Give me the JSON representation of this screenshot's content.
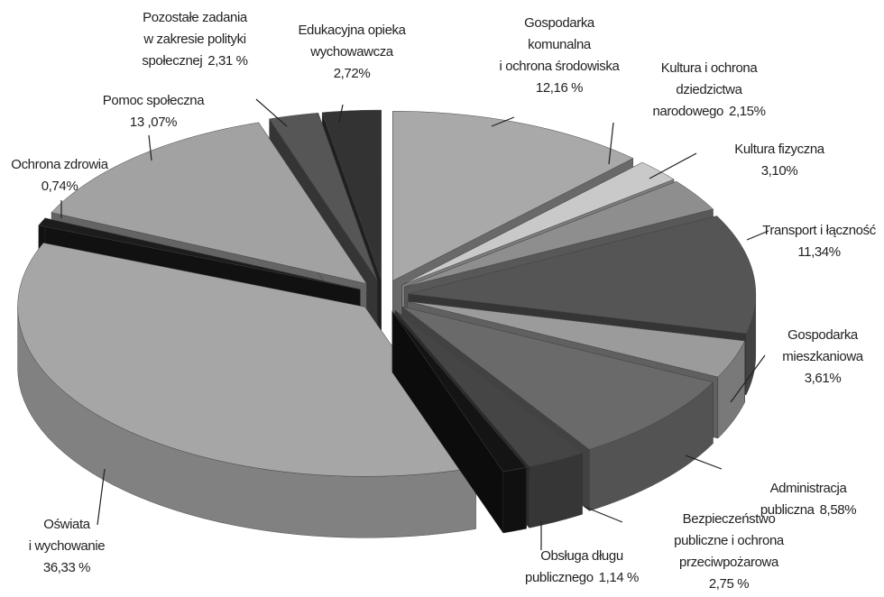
{
  "chart_data": {
    "type": "pie3d",
    "categories": [
      [
        "Gospodarka",
        "komunalna",
        "i ochrona środowiska"
      ],
      [
        "Kultura i ochrona",
        "dziedzictwa",
        "narodowego"
      ],
      [
        "Kultura fizyczna"
      ],
      [
        "Transport i łączność"
      ],
      [
        "Gospodarka",
        "mieszkaniowa"
      ],
      [
        "Administracja",
        "publiczna"
      ],
      [
        "Bezpieczeństwo",
        "publiczne i ochrona",
        "przeciwpożarowa"
      ],
      [
        "Obsługa długu",
        "publicznego"
      ],
      [
        "Oświata",
        "i  wychowanie"
      ],
      [
        "Ochrona zdrowia"
      ],
      [
        "Pomoc społeczna"
      ],
      [
        "Pozostałe zadania",
        "w  zakresie polityki",
        "społecznej"
      ],
      [
        "Edukacyjna opieka",
        "wychowawcza"
      ]
    ],
    "values": [
      12.16,
      2.15,
      3.1,
      11.34,
      3.61,
      8.58,
      2.75,
      1.14,
      36.33,
      0.74,
      13.07,
      2.31,
      2.72
    ],
    "value_labels": [
      "12,16 %",
      "2,15%",
      "3,10%",
      "11,34%",
      "3,61%",
      "8,58%",
      "2,75 %",
      "1,14 %",
      "36,33 %",
      "0,74%",
      "13 ,07%",
      "2,31 %",
      "2,72%"
    ],
    "colors": [
      "#a9a9a9",
      "#c9c9c9",
      "#8e8e8e",
      "#555555",
      "#9b9b9b",
      "#6a6a6a",
      "#454545",
      "#141414",
      "#a6a6a6",
      "#1c1c1c",
      "#a2a2a2",
      "#565656",
      "#333333"
    ]
  }
}
